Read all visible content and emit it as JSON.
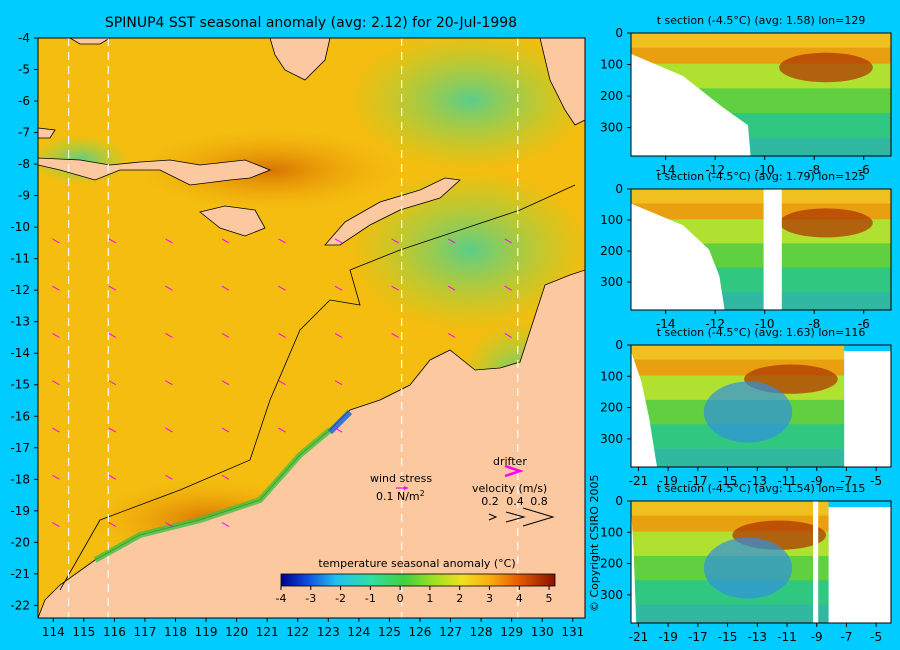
{
  "chart_data": [
    {
      "type": "heatmap",
      "title": "SPINUP4 SST seasonal anomaly (avg: 2.12) for 20-Jul-1998",
      "x_ticks": [
        114,
        115,
        116,
        117,
        118,
        119,
        120,
        121,
        122,
        123,
        124,
        125,
        126,
        127,
        128,
        129,
        130,
        131
      ],
      "y_ticks": [
        -4,
        -5,
        -6,
        -7,
        -8,
        -9,
        -10,
        -11,
        -12,
        -13,
        -14,
        -15,
        -16,
        -17,
        -18,
        -19,
        -20,
        -21,
        -22
      ],
      "xlim": [
        113.5,
        131.4
      ],
      "ylim": [
        -22.4,
        -4
      ],
      "section_longitudes": [
        114.5,
        115.8,
        125.4,
        129.2
      ],
      "colorbar": {
        "label": "temperature seasonal anomaly (°C)",
        "ticks": [
          -4,
          -3,
          -2,
          -1,
          0,
          1,
          2,
          3,
          4,
          5
        ],
        "range": [
          -4,
          5.2
        ]
      },
      "legend": {
        "wind_label": "wind stress",
        "wind_scale": "0.1 N/m",
        "wind_scale_sup": "2",
        "drifter_label": "drifter",
        "velocity_label": "velocity (m/s)",
        "velocity_ticks": [
          "0.2",
          "0.4",
          "0.8"
        ]
      },
      "wind_arrow_color": "#ff00ff"
    },
    {
      "type": "heatmap",
      "title": "t section (-4.5°C) (avg: 1.58) lon=129",
      "x_ticks": [
        -14,
        -12,
        -10,
        -8,
        -6
      ],
      "xlim": [
        -15.4,
        -4.9
      ],
      "y_ticks": [
        0,
        100,
        200,
        300
      ],
      "ylim": [
        390,
        0
      ]
    },
    {
      "type": "heatmap",
      "title": "t section (-4.5°C) (avg: 1.79) lon=125",
      "x_ticks": [
        -14,
        -12,
        -10,
        -8,
        -6
      ],
      "xlim": [
        -15.4,
        -4.9
      ],
      "y_ticks": [
        0,
        100,
        200,
        300
      ],
      "ylim": [
        390,
        0
      ]
    },
    {
      "type": "heatmap",
      "title": "t section (-4.5°C) (avg: 1.63) lon=116",
      "x_ticks": [
        -21,
        -19,
        -17,
        -15,
        -13,
        -11,
        -9,
        -7,
        -5
      ],
      "xlim": [
        -21.5,
        -4
      ],
      "y_ticks": [
        0,
        100,
        200,
        300
      ],
      "ylim": [
        390,
        0
      ]
    },
    {
      "type": "heatmap",
      "title": "t section (-4.5°C) (avg: 1.54) lon=115",
      "x_ticks": [
        -21,
        -19,
        -17,
        -15,
        -13,
        -11,
        -9,
        -7,
        -5
      ],
      "xlim": [
        -21.5,
        -4
      ],
      "y_ticks": [
        0,
        100,
        200,
        300
      ],
      "ylim": [
        390,
        0
      ]
    }
  ],
  "copyright": "© Copyright CSIRO 2005"
}
